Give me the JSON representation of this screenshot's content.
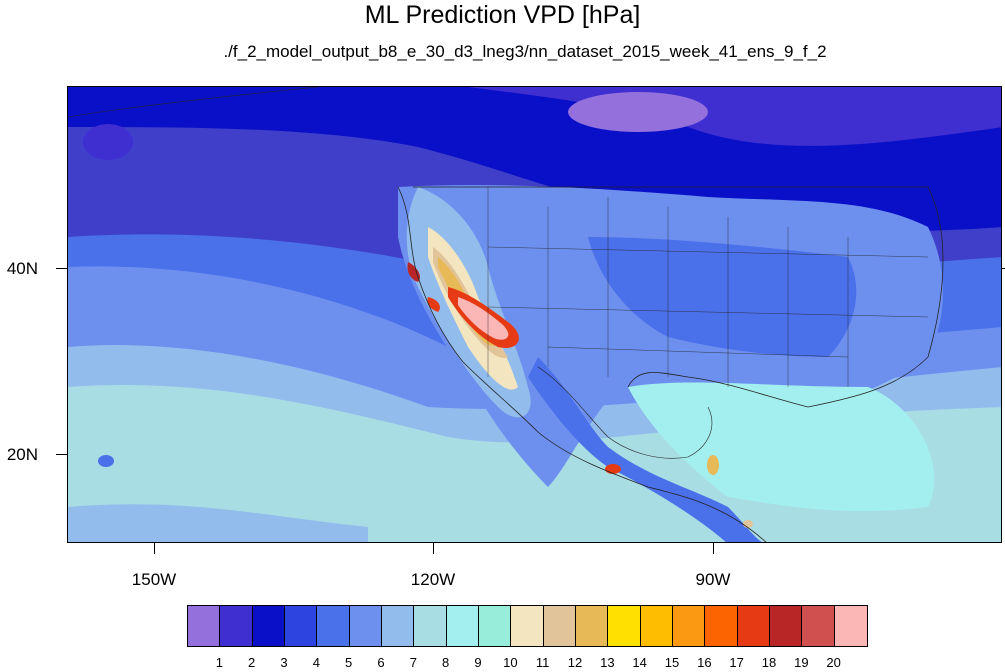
{
  "title": "ML Prediction VPD [hPa]",
  "subtitle": "./f_2_model_output_b8_e_30_d3_lneg3/nn_dataset_2015_week_41_ens_9_f_2",
  "lat_labels": [
    "40N",
    "20N"
  ],
  "lon_labels": [
    "150W",
    "120W",
    "90W"
  ],
  "colorbar": {
    "labels": [
      "1",
      "2",
      "3",
      "4",
      "5",
      "6",
      "7",
      "8",
      "9",
      "10",
      "11",
      "12",
      "13",
      "14",
      "15",
      "16",
      "17",
      "18",
      "19",
      "20"
    ],
    "colors": [
      "#9370db",
      "#3f2fd0",
      "#0a10c8",
      "#2e44e0",
      "#4a70ea",
      "#6d90ef",
      "#92bcec",
      "#a8dde4",
      "#a3eeef",
      "#97ecda",
      "#f3e5c0",
      "#e1c49a",
      "#e8b957",
      "#ffe000",
      "#ffbd00",
      "#fb9a12",
      "#fb6400",
      "#e63a14",
      "#b92626",
      "#d05050",
      "#fbb6b6"
    ]
  },
  "map": {
    "projection": "cylindrical equidistant",
    "region": "North Pacific, North America, Central America",
    "longitude_range": [
      -160,
      -60
    ],
    "latitude_range": [
      11,
      60
    ]
  }
}
